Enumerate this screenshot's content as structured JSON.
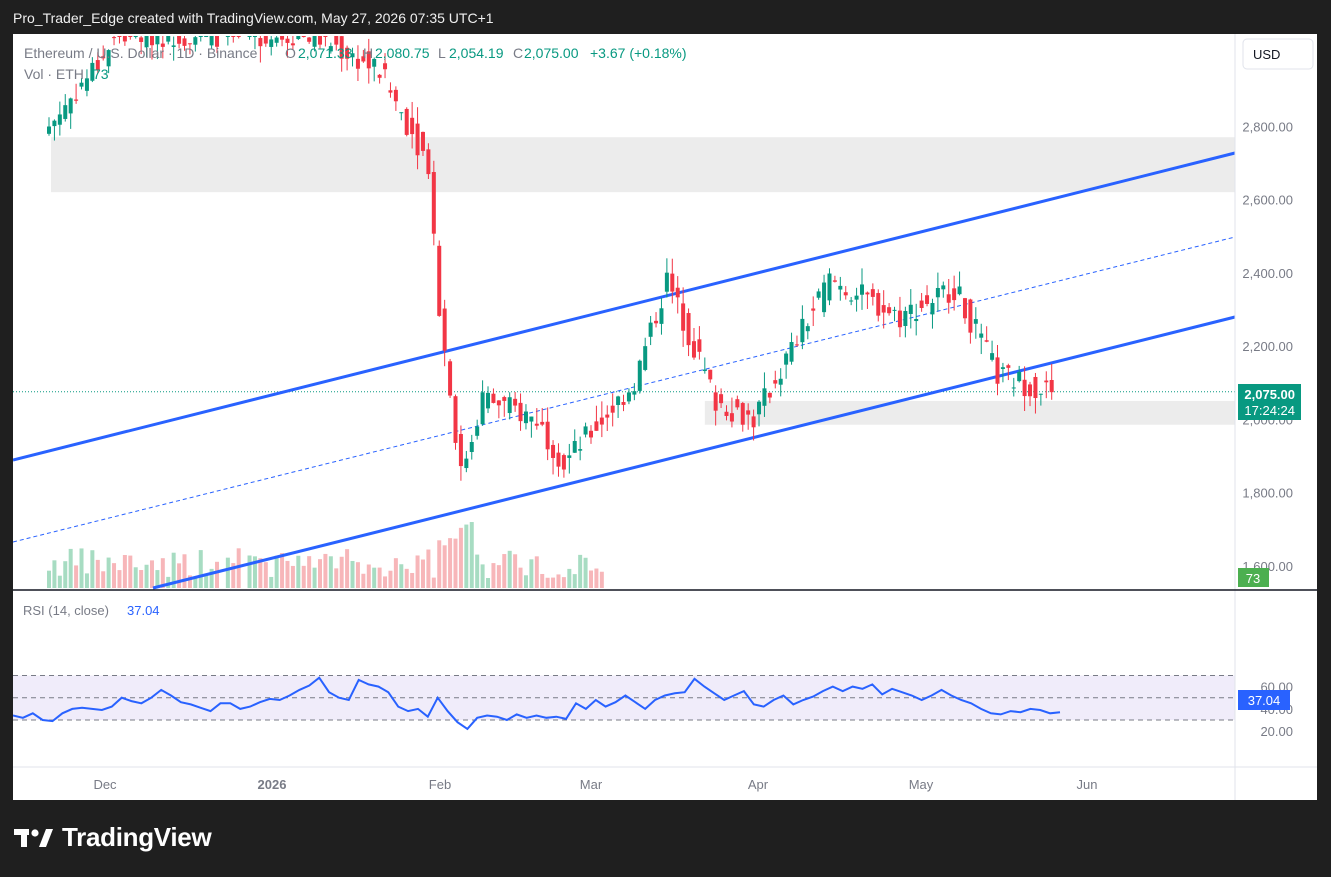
{
  "header": {
    "caption": "Pro_Trader_Edge created with TradingView.com, May 27, 2026 07:35 UTC+1"
  },
  "symbol": {
    "name": "Ethereum / U.S. Dollar · 1D · Binance",
    "open_label": "O",
    "open": "2,071.33",
    "high_label": "H",
    "high": "2,080.75",
    "low_label": "L",
    "low": "2,054.19",
    "close_label": "C",
    "close": "2,075.00",
    "change": "+3.67 (+0.18%)"
  },
  "volume_legend": {
    "label": "Vol · ETH",
    "value": "73"
  },
  "currency_button": "USD",
  "price_badge": {
    "price": "2,075.00",
    "countdown": "17:24:24"
  },
  "volume_badge": "73",
  "rsi_legend": {
    "label": "RSI (14, close)",
    "value": "37.04"
  },
  "rsi_badge": "37.04",
  "brand": {
    "name": "TradingView"
  },
  "colors": {
    "up": "#089981",
    "down": "#f23645",
    "channel": "#2962ff",
    "rsi_line": "#2962ff",
    "zone": "#ececec",
    "rsi_band": "#f0ecfa",
    "volume_up": "#a7dcc2",
    "volume_down": "#f7b6b9"
  },
  "chart_data": {
    "type": "candlestick",
    "instrument": "ETH/USD",
    "interval": "1D",
    "price_ticks": [
      "1,600.00",
      "1,800.00",
      "2,000.00",
      "2,200.00",
      "2,400.00",
      "2,600.00",
      "2,800.00"
    ],
    "price_tick_values": [
      1600,
      1800,
      2000,
      2200,
      2400,
      2600,
      2800
    ],
    "time_labels": [
      "Dec",
      "2026",
      "Feb",
      "Mar",
      "Apr",
      "May",
      "Jun"
    ],
    "last_price": 2075.0,
    "approx_close_path": [
      {
        "date": "2025-11-22",
        "close": 2800
      },
      {
        "date": "2025-12-05",
        "close": 3050
      },
      {
        "date": "2026-01-10",
        "close": 3050
      },
      {
        "date": "2026-01-22",
        "close": 2950
      },
      {
        "date": "2026-01-31",
        "close": 2700
      },
      {
        "date": "2026-02-02",
        "close": 2300
      },
      {
        "date": "2026-02-06",
        "close": 1850
      },
      {
        "date": "2026-02-10",
        "close": 2060
      },
      {
        "date": "2026-02-20",
        "close": 2000
      },
      {
        "date": "2026-02-25",
        "close": 1880
      },
      {
        "date": "2026-03-10",
        "close": 2100
      },
      {
        "date": "2026-03-16",
        "close": 2380
      },
      {
        "date": "2026-03-25",
        "close": 2050
      },
      {
        "date": "2026-04-01",
        "close": 2000
      },
      {
        "date": "2026-04-15",
        "close": 2380
      },
      {
        "date": "2026-04-28",
        "close": 2280
      },
      {
        "date": "2026-05-08",
        "close": 2360
      },
      {
        "date": "2026-05-16",
        "close": 2120
      },
      {
        "date": "2026-05-26",
        "close": 2075
      }
    ],
    "supply_zone": [
      2620,
      2770
    ],
    "demand_zone": [
      1985,
      2050
    ],
    "rsi": {
      "ticks": [
        "20.00",
        "40.00",
        "60.00"
      ],
      "tick_values": [
        20,
        40,
        60
      ],
      "levels": [
        30,
        50,
        70
      ],
      "last": 37.04,
      "series": [
        34,
        32,
        36,
        30,
        29,
        36,
        40,
        41,
        40,
        39,
        42,
        50,
        47,
        45,
        50,
        57,
        52,
        46,
        44,
        41,
        38,
        45,
        45,
        40,
        42,
        46,
        49,
        48,
        52,
        57,
        61,
        68,
        55,
        50,
        48,
        66,
        62,
        60,
        55,
        42,
        38,
        40,
        33,
        50,
        38,
        28,
        22,
        32,
        34,
        33,
        30,
        35,
        32,
        34,
        32,
        33,
        31,
        45,
        40,
        48,
        42,
        46,
        52,
        46,
        40,
        48,
        52,
        54,
        55,
        67,
        60,
        54,
        48,
        52,
        56,
        44,
        42,
        48,
        52,
        44,
        48,
        51,
        56,
        60,
        56,
        60,
        58,
        62,
        53,
        58,
        55,
        52,
        48,
        52,
        57,
        52,
        48,
        45,
        40,
        36,
        35,
        38,
        37,
        40,
        39,
        36,
        37
      ]
    }
  }
}
